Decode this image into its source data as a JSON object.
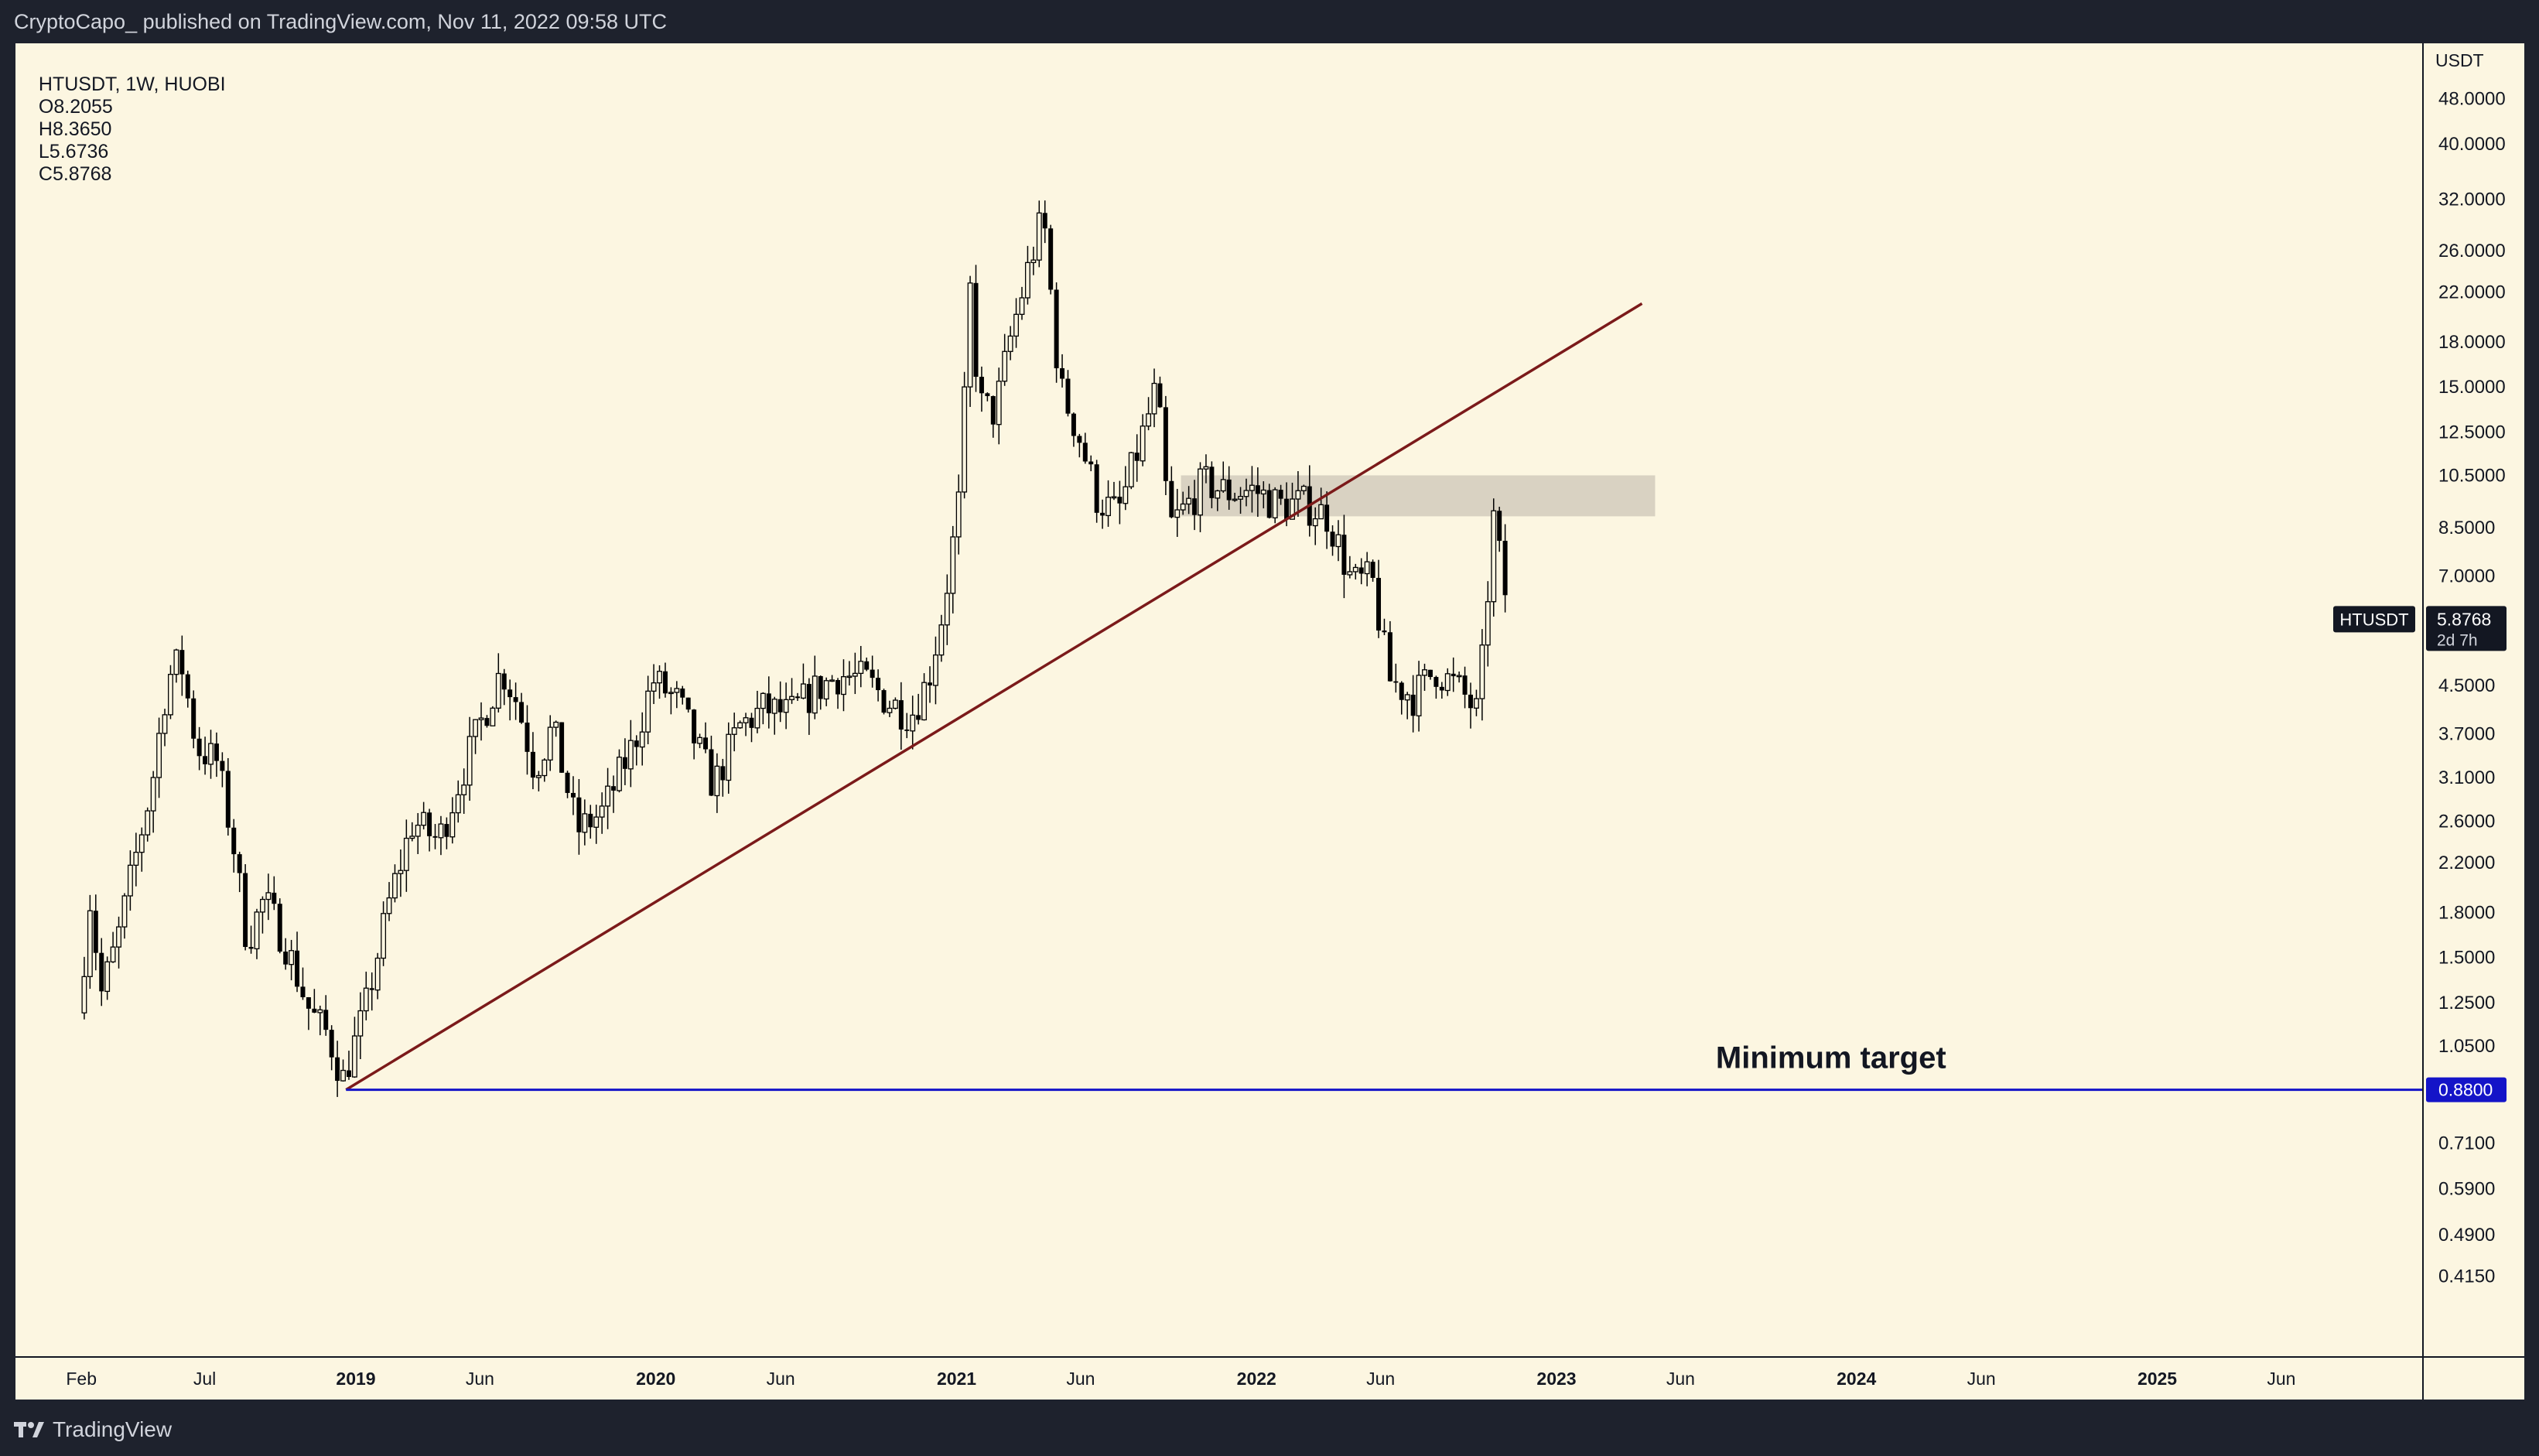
{
  "header": {
    "publisher_line": "CryptoCapo_ published on TradingView.com, Nov 11, 2022 09:58 UTC"
  },
  "legend": {
    "symbol": "HTUSDT, 1W, HUOBI",
    "open": "O8.2055",
    "high": "H8.3650",
    "low": "L5.6736",
    "close": "C5.8768"
  },
  "price_axis": {
    "unit": "USDT"
  },
  "footer": {
    "brand": "TradingView"
  },
  "colors": {
    "background": "#fcf6e1",
    "frame": "#1e222d",
    "trendline": "#7b1a1a",
    "target_line": "#1414c8",
    "zone": "#d9d2c2",
    "candle": "#000000"
  },
  "chart_data": {
    "type": "candlestick",
    "symbol": "HTUSDT",
    "timeframe": "1W",
    "exchange": "HUOBI",
    "y_scale": "log",
    "y_ticks": [
      "48.0000",
      "40.0000",
      "32.0000",
      "26.0000",
      "22.0000",
      "18.0000",
      "15.0000",
      "12.5000",
      "10.5000",
      "8.5000",
      "7.0000",
      "5.8768",
      "4.5000",
      "3.7000",
      "3.1000",
      "2.6000",
      "2.2000",
      "1.8000",
      "1.5000",
      "1.2500",
      "1.0500",
      "0.8800",
      "0.7100",
      "0.5900",
      "0.4900",
      "0.4150"
    ],
    "x_ticks": [
      {
        "label": "Feb",
        "date": "2018-02-01",
        "bold": false
      },
      {
        "label": "Jul",
        "date": "2018-07-01",
        "bold": false
      },
      {
        "label": "2019",
        "date": "2019-01-01",
        "bold": true
      },
      {
        "label": "Jun",
        "date": "2019-06-01",
        "bold": false
      },
      {
        "label": "2020",
        "date": "2020-01-01",
        "bold": true
      },
      {
        "label": "Jun",
        "date": "2020-06-01",
        "bold": false
      },
      {
        "label": "2021",
        "date": "2021-01-01",
        "bold": true
      },
      {
        "label": "Jun",
        "date": "2021-06-01",
        "bold": false
      },
      {
        "label": "2022",
        "date": "2022-01-01",
        "bold": true
      },
      {
        "label": "Jun",
        "date": "2022-06-01",
        "bold": false
      },
      {
        "label": "2023",
        "date": "2023-01-01",
        "bold": true
      },
      {
        "label": "Jun",
        "date": "2023-06-01",
        "bold": false
      },
      {
        "label": "2024",
        "date": "2024-01-01",
        "bold": true
      },
      {
        "label": "Jun",
        "date": "2024-06-01",
        "bold": false
      },
      {
        "label": "2025",
        "date": "2025-01-01",
        "bold": true
      },
      {
        "label": "Jun",
        "date": "2025-06-01",
        "bold": false
      }
    ],
    "current_price": {
      "label": "HTUSDT",
      "value": "5.8768",
      "countdown": "2d 7h"
    },
    "price_path": [
      {
        "date": "2018-02-01",
        "price": 1.2
      },
      {
        "date": "2018-02-15",
        "price": 1.9
      },
      {
        "date": "2018-03-01",
        "price": 1.3
      },
      {
        "date": "2018-03-20",
        "price": 1.6
      },
      {
        "date": "2018-04-10",
        "price": 2.2
      },
      {
        "date": "2018-05-01",
        "price": 3.0
      },
      {
        "date": "2018-05-20",
        "price": 4.6
      },
      {
        "date": "2018-06-05",
        "price": 5.0
      },
      {
        "date": "2018-06-25",
        "price": 3.5
      },
      {
        "date": "2018-07-20",
        "price": 3.3
      },
      {
        "date": "2018-08-10",
        "price": 2.3
      },
      {
        "date": "2018-08-25",
        "price": 1.6
      },
      {
        "date": "2018-09-15",
        "price": 1.9
      },
      {
        "date": "2018-10-10",
        "price": 1.6
      },
      {
        "date": "2018-11-10",
        "price": 1.2
      },
      {
        "date": "2018-12-01",
        "price": 1.1
      },
      {
        "date": "2018-12-20",
        "price": 0.92
      },
      {
        "date": "2019-01-15",
        "price": 1.2
      },
      {
        "date": "2019-02-15",
        "price": 1.9
      },
      {
        "date": "2019-03-15",
        "price": 2.6
      },
      {
        "date": "2019-04-15",
        "price": 2.4
      },
      {
        "date": "2019-05-15",
        "price": 3.2
      },
      {
        "date": "2019-06-15",
        "price": 4.2
      },
      {
        "date": "2019-07-01",
        "price": 4.8
      },
      {
        "date": "2019-07-20",
        "price": 4.2
      },
      {
        "date": "2019-08-10",
        "price": 3.2
      },
      {
        "date": "2019-09-01",
        "price": 3.8
      },
      {
        "date": "2019-10-01",
        "price": 2.5
      },
      {
        "date": "2019-11-01",
        "price": 2.7
      },
      {
        "date": "2019-12-10",
        "price": 3.6
      },
      {
        "date": "2020-01-01",
        "price": 4.6
      },
      {
        "date": "2020-02-01",
        "price": 4.2
      },
      {
        "date": "2020-03-15",
        "price": 3.0
      },
      {
        "date": "2020-04-15",
        "price": 3.8
      },
      {
        "date": "2020-05-15",
        "price": 4.1
      },
      {
        "date": "2020-06-15",
        "price": 4.0
      },
      {
        "date": "2020-07-15",
        "price": 4.4
      },
      {
        "date": "2020-08-15",
        "price": 4.7
      },
      {
        "date": "2020-09-15",
        "price": 4.6
      },
      {
        "date": "2020-10-15",
        "price": 4.2
      },
      {
        "date": "2020-11-10",
        "price": 4.0
      },
      {
        "date": "2020-12-01",
        "price": 4.6
      },
      {
        "date": "2020-12-20",
        "price": 6.2
      },
      {
        "date": "2021-01-10",
        "price": 10.0
      },
      {
        "date": "2021-01-20",
        "price": 23.0
      },
      {
        "date": "2021-02-01",
        "price": 14.0
      },
      {
        "date": "2021-02-20",
        "price": 13.5
      },
      {
        "date": "2021-03-10",
        "price": 18.0
      },
      {
        "date": "2021-04-01",
        "price": 24.0
      },
      {
        "date": "2021-04-20",
        "price": 30.0
      },
      {
        "date": "2021-05-10",
        "price": 15.0
      },
      {
        "date": "2021-06-01",
        "price": 12.5
      },
      {
        "date": "2021-06-25",
        "price": 9.5
      },
      {
        "date": "2021-07-20",
        "price": 9.0
      },
      {
        "date": "2021-08-20",
        "price": 12.5
      },
      {
        "date": "2021-09-05",
        "price": 15.0
      },
      {
        "date": "2021-09-20",
        "price": 8.5
      },
      {
        "date": "2021-10-10",
        "price": 9.2
      },
      {
        "date": "2021-11-01",
        "price": 10.2
      },
      {
        "date": "2021-12-01",
        "price": 9.8
      },
      {
        "date": "2022-01-01",
        "price": 9.9
      },
      {
        "date": "2022-02-01",
        "price": 9.3
      },
      {
        "date": "2022-03-01",
        "price": 9.4
      },
      {
        "date": "2022-04-01",
        "price": 8.9
      },
      {
        "date": "2022-05-01",
        "price": 6.8
      },
      {
        "date": "2022-05-25",
        "price": 6.9
      },
      {
        "date": "2022-06-15",
        "price": 4.6
      },
      {
        "date": "2022-07-15",
        "price": 4.3
      },
      {
        "date": "2022-08-10",
        "price": 4.8
      },
      {
        "date": "2022-09-10",
        "price": 4.4
      },
      {
        "date": "2022-10-01",
        "price": 4.0
      },
      {
        "date": "2022-10-20",
        "price": 8.8
      },
      {
        "date": "2022-11-08",
        "price": 5.8768
      }
    ],
    "drawings": {
      "trendline": {
        "from": {
          "date": "2018-12-20",
          "price": 0.88
        },
        "to": {
          "date": "2023-04-15",
          "price": 21.0
        }
      },
      "resistance_zone": {
        "from_date": "2021-10-01",
        "to_date": "2023-05-01",
        "low": 8.9,
        "high": 10.5
      },
      "target_line": {
        "price": 0.88,
        "label": "0.8800",
        "from_date": "2018-12-20"
      },
      "annotation": {
        "text": "Minimum target",
        "date": "2023-12-01",
        "price": 0.96
      }
    }
  }
}
